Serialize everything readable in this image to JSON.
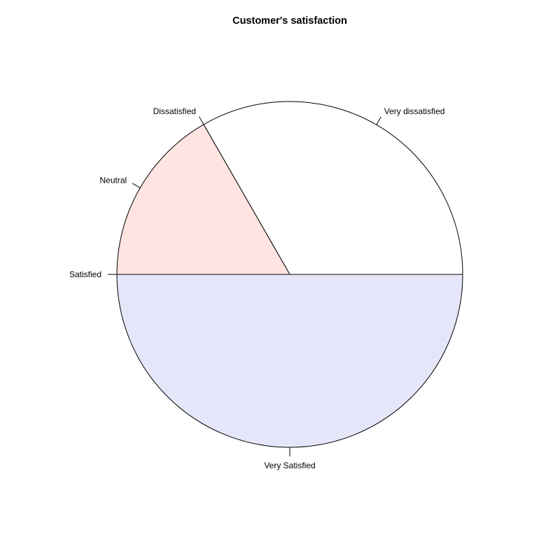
{
  "chart_data": {
    "type": "pie",
    "title": "Customer's satisfaction",
    "direction": "counterclockwise",
    "start_angle_deg": 0,
    "slices": [
      {
        "label": "Very dissatisfied",
        "value": 33.3,
        "color": "#ffffff"
      },
      {
        "label": "Dissatisfied",
        "value": 0,
        "color": "#f0f8ff"
      },
      {
        "label": "Neutral",
        "value": 16.7,
        "color": "#ffe4e1"
      },
      {
        "label": "Satisfied",
        "value": 0,
        "color": "#e0ffff"
      },
      {
        "label": "Very Satisfied",
        "value": 50.0,
        "color": "#e6e6fa"
      }
    ]
  }
}
